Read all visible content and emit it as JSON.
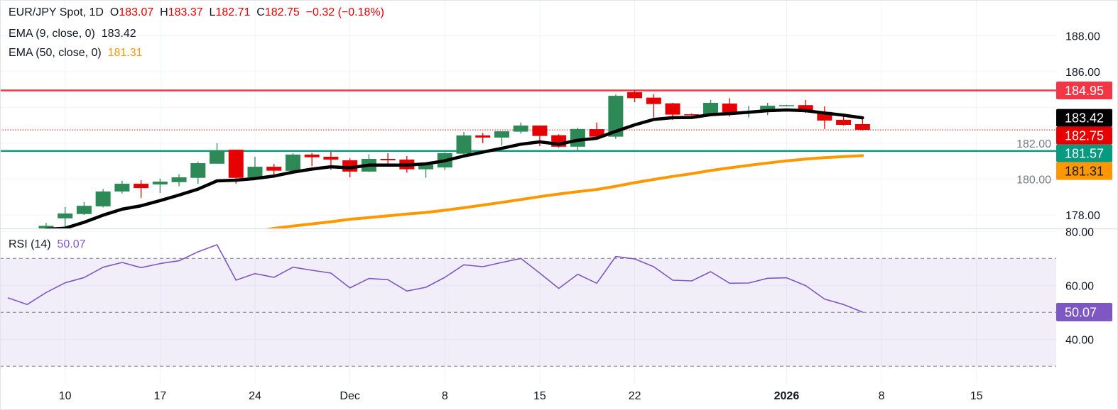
{
  "header": {
    "symbol": "EUR/JPY Spot, 1D",
    "o_label": "O",
    "o": "183.07",
    "h_label": "H",
    "h": "183.37",
    "l_label": "L",
    "l": "182.71",
    "c_label": "C",
    "c": "182.75",
    "change": "−0.32 (−0.18%)",
    "ema9_label": "EMA (9, close, 0)",
    "ema9_value": "183.42",
    "ema50_label": "EMA (50, close, 0)",
    "ema50_value": "181.31",
    "rsi_label": "RSI (14)",
    "rsi_value": "50.07"
  },
  "colors": {
    "up": "#2d8a57",
    "down": "#e60000",
    "ema9": "#000000",
    "ema50": "#ff9800",
    "resistance": "#f23645",
    "support": "#089981",
    "rsi": "#7e57c2",
    "grid": "#f0f3fa"
  },
  "chart_data": [
    {
      "type": "candlestick",
      "title": "EUR/JPY Spot, 1D",
      "ylim": [
        177.1,
        189.9
      ],
      "grid": true,
      "y_ticks": [
        "188.00",
        "186.00",
        "182.00",
        "180.00",
        "178.00"
      ],
      "x_ticks": [
        {
          "label": "10",
          "date": "2025-11-10"
        },
        {
          "label": "17",
          "date": "2025-11-17"
        },
        {
          "label": "24",
          "date": "2025-11-24"
        },
        {
          "label": "Dec",
          "date": "2025-12-01"
        },
        {
          "label": "8",
          "date": "2025-12-08"
        },
        {
          "label": "15",
          "date": "2025-12-15"
        },
        {
          "label": "22",
          "date": "2025-12-22"
        },
        {
          "label": "2026",
          "date": "2026-01-01"
        },
        {
          "label": "8",
          "date": "2026-01-08"
        },
        {
          "label": "15",
          "date": "2026-01-15"
        }
      ],
      "dates": [
        "2025-11-05",
        "2025-11-06",
        "2025-11-07",
        "2025-11-10",
        "2025-11-11",
        "2025-11-12",
        "2025-11-13",
        "2025-11-14",
        "2025-11-17",
        "2025-11-18",
        "2025-11-19",
        "2025-11-20",
        "2025-11-21",
        "2025-11-24",
        "2025-11-25",
        "2025-11-26",
        "2025-11-27",
        "2025-11-28",
        "2025-12-01",
        "2025-12-02",
        "2025-12-03",
        "2025-12-04",
        "2025-12-05",
        "2025-12-08",
        "2025-12-09",
        "2025-12-10",
        "2025-12-11",
        "2025-12-12",
        "2025-12-15",
        "2025-12-16",
        "2025-12-17",
        "2025-12-18",
        "2025-12-19",
        "2025-12-22",
        "2025-12-23",
        "2025-12-24",
        "2025-12-25",
        "2025-12-26",
        "2025-12-29",
        "2025-12-30",
        "2025-12-31",
        "2026-01-01",
        "2026-01-02",
        "2026-01-05",
        "2026-01-06",
        "2026-01-07"
      ],
      "ohlc": [
        null,
        null,
        [
          177.22,
          177.56,
          177.1,
          177.39
        ],
        [
          177.81,
          178.44,
          177.22,
          178.08
        ],
        [
          178.05,
          178.71,
          178.0,
          178.51
        ],
        [
          178.48,
          179.44,
          178.42,
          179.31
        ],
        [
          179.31,
          179.91,
          179.2,
          179.74
        ],
        [
          179.74,
          179.94,
          178.95,
          179.5
        ],
        [
          179.7,
          180.03,
          179.23,
          179.86
        ],
        [
          179.83,
          180.27,
          179.6,
          180.1
        ],
        [
          180.07,
          180.98,
          179.74,
          180.89
        ],
        [
          180.86,
          182.0,
          180.86,
          181.59
        ],
        [
          181.64,
          181.64,
          179.75,
          180.07
        ],
        [
          180.1,
          181.25,
          180.03,
          180.69
        ],
        [
          180.69,
          180.85,
          180.07,
          180.47
        ],
        [
          180.46,
          181.45,
          180.34,
          181.37
        ],
        [
          181.37,
          181.45,
          180.73,
          181.22
        ],
        [
          181.25,
          181.52,
          180.52,
          181.09
        ],
        [
          181.05,
          181.16,
          180.1,
          180.42
        ],
        [
          180.42,
          181.38,
          180.4,
          181.13
        ],
        [
          181.13,
          181.45,
          180.78,
          181.05
        ],
        [
          181.09,
          181.29,
          180.36,
          180.55
        ],
        [
          180.55,
          180.81,
          180.07,
          180.81
        ],
        [
          180.65,
          181.49,
          180.5,
          181.45
        ],
        [
          181.42,
          182.63,
          181.29,
          182.44
        ],
        [
          182.44,
          182.58,
          182.01,
          182.32
        ],
        [
          182.32,
          182.67,
          181.88,
          182.67
        ],
        [
          182.65,
          183.16,
          182.54,
          182.99
        ],
        [
          182.99,
          182.99,
          181.84,
          182.41
        ],
        [
          182.45,
          182.5,
          181.75,
          181.81
        ],
        [
          181.81,
          182.87,
          181.62,
          182.8
        ],
        [
          182.79,
          183.16,
          182.32,
          182.37
        ],
        [
          182.37,
          184.72,
          182.25,
          184.65
        ],
        [
          184.85,
          184.96,
          184.29,
          184.52
        ],
        [
          184.55,
          184.74,
          183.44,
          184.19
        ],
        [
          184.23,
          184.26,
          183.31,
          183.6
        ],
        [
          183.62,
          183.66,
          183.55,
          183.58
        ],
        [
          183.62,
          184.42,
          183.6,
          184.26
        ],
        [
          184.22,
          184.52,
          183.49,
          183.73
        ],
        [
          183.74,
          184.09,
          183.44,
          183.77
        ],
        [
          183.75,
          184.26,
          183.57,
          184.1
        ],
        [
          184.08,
          184.15,
          184.06,
          184.13
        ],
        [
          184.13,
          184.42,
          183.7,
          183.79
        ],
        [
          183.75,
          184.06,
          182.8,
          183.27
        ],
        [
          183.31,
          183.64,
          182.99,
          183.03
        ],
        [
          183.07,
          183.37,
          182.71,
          182.75
        ]
      ],
      "series": [
        {
          "name": "EMA (9, close, 0)",
          "values": [
            null,
            null,
            177.2,
            177.26,
            177.59,
            177.99,
            178.32,
            178.51,
            178.8,
            179.11,
            179.44,
            179.9,
            179.94,
            180.03,
            180.17,
            180.39,
            180.56,
            180.69,
            180.63,
            180.78,
            180.78,
            180.78,
            180.85,
            181.02,
            181.29,
            181.51,
            181.72,
            181.95,
            182.08,
            181.95,
            182.17,
            182.28,
            182.67,
            183.03,
            183.33,
            183.43,
            183.44,
            183.6,
            183.66,
            183.73,
            183.82,
            183.86,
            183.82,
            183.69,
            183.57,
            183.42
          ]
        },
        {
          "name": "EMA (50, close, 0)",
          "values": [
            null,
            null,
            null,
            null,
            null,
            null,
            null,
            null,
            null,
            null,
            null,
            null,
            null,
            177.05,
            177.25,
            177.38,
            177.5,
            177.62,
            177.76,
            177.85,
            177.95,
            178.05,
            178.14,
            178.26,
            178.4,
            178.55,
            178.7,
            178.86,
            179.02,
            179.17,
            179.3,
            179.42,
            179.6,
            179.8,
            179.98,
            180.15,
            180.3,
            180.48,
            180.63,
            180.77,
            180.9,
            181.02,
            181.12,
            181.2,
            181.26,
            181.31
          ]
        }
      ],
      "price_lines": [
        {
          "value": 184.95,
          "label": "184.95",
          "color": "#f23645",
          "style": "solid"
        },
        {
          "value": 181.57,
          "label": "181.57",
          "color": "#089981",
          "style": "solid"
        },
        {
          "value": 182.75,
          "label": "182.75",
          "color": "#e60000",
          "style": "dotted"
        }
      ],
      "axis_badges": [
        {
          "value": 184.95,
          "label": "184.95",
          "bg": "#f23645",
          "fg": "#ffffff"
        },
        {
          "value": 183.42,
          "label": "183.42",
          "bg": "#000000",
          "fg": "#ffffff"
        },
        {
          "value": 182.75,
          "label": "182.75",
          "bg": "#e60000",
          "fg": "#ffffff"
        },
        {
          "value": 181.57,
          "label": "181.57",
          "bg": "#089981",
          "fg": "#ffffff"
        },
        {
          "value": 181.31,
          "label": "181.31",
          "bg": "#ff9800",
          "fg": "#131722"
        }
      ]
    },
    {
      "type": "line",
      "title": "RSI (14)",
      "ylim": [
        25,
        80
      ],
      "y_ticks": [
        "80.00",
        "60.00",
        "40.00"
      ],
      "bands": [
        70,
        50,
        30
      ],
      "values": [
        55.35,
        52.89,
        57.37,
        60.96,
        62.89,
        66.75,
        68.5,
        66.58,
        68.07,
        69.12,
        72.46,
        75.09,
        61.93,
        64.39,
        62.98,
        66.75,
        65.61,
        64.56,
        59.04,
        62.54,
        62.11,
        57.89,
        59.3,
        62.98,
        67.63,
        66.93,
        68.51,
        70.0,
        64.56,
        58.86,
        64.12,
        60.79,
        70.7,
        69.82,
        66.93,
        61.93,
        61.67,
        65.09,
        60.79,
        60.88,
        62.63,
        62.81,
        59.91,
        54.91,
        52.89,
        50.07
      ],
      "last_badge": {
        "label": "50.07",
        "bg": "#7e57c2",
        "fg": "#ffffff"
      }
    }
  ]
}
